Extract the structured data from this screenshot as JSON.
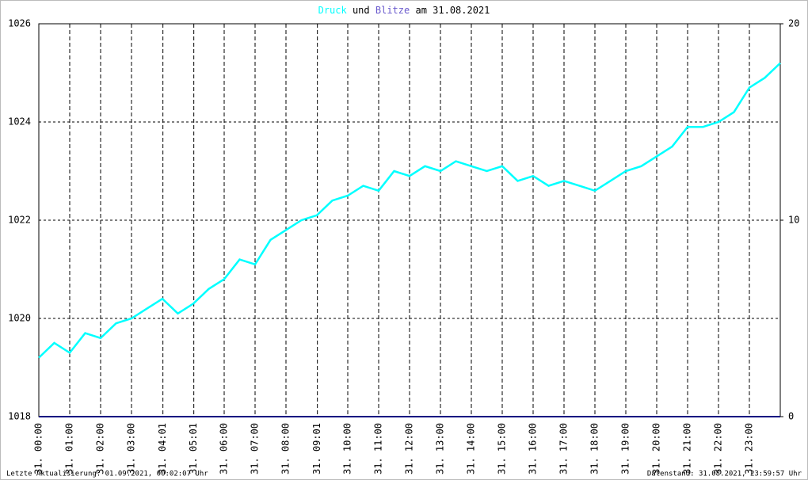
{
  "chart_data": {
    "type": "line",
    "title_connector": "und",
    "title_date": "am 31.08.2021",
    "footer_left": "Letzte Aktualisierung: 01.09.2021, 00:02:07 Uhr",
    "footer_right": "Datenstand: 31.08.2021, 23:59:57 Uhr",
    "xlim": [
      0,
      24
    ],
    "xticks": [
      {
        "value": 0,
        "label": "31. 00:00"
      },
      {
        "value": 1,
        "label": "31. 01:00"
      },
      {
        "value": 2,
        "label": "31. 02:00"
      },
      {
        "value": 3,
        "label": "31. 03:00"
      },
      {
        "value": 4.017,
        "label": "31. 04:01"
      },
      {
        "value": 5.017,
        "label": "31. 05:01"
      },
      {
        "value": 6,
        "label": "31. 06:00"
      },
      {
        "value": 7,
        "label": "31. 07:00"
      },
      {
        "value": 8,
        "label": "31. 08:00"
      },
      {
        "value": 9.017,
        "label": "31. 09:01"
      },
      {
        "value": 10,
        "label": "31. 10:00"
      },
      {
        "value": 11,
        "label": "31. 11:00"
      },
      {
        "value": 12,
        "label": "31. 12:00"
      },
      {
        "value": 13,
        "label": "31. 13:00"
      },
      {
        "value": 14,
        "label": "31. 14:00"
      },
      {
        "value": 15,
        "label": "31. 15:00"
      },
      {
        "value": 16,
        "label": "31. 16:00"
      },
      {
        "value": 17,
        "label": "31. 17:00"
      },
      {
        "value": 18,
        "label": "31. 18:00"
      },
      {
        "value": 19,
        "label": "31. 19:00"
      },
      {
        "value": 20,
        "label": "31. 20:00"
      },
      {
        "value": 21,
        "label": "31. 21:00"
      },
      {
        "value": 22,
        "label": "31. 22:00"
      },
      {
        "value": 23,
        "label": "31. 23:00"
      }
    ],
    "ylim": [
      1018,
      1026
    ],
    "yticks": [
      1018,
      1020,
      1022,
      1024,
      1026
    ],
    "y2lim": [
      0,
      20
    ],
    "y2ticks": [
      0,
      10,
      20
    ],
    "grid": true,
    "series": [
      {
        "name": "Druck",
        "color": "#00ffff",
        "x": [
          0,
          0.5,
          1,
          1.5,
          2,
          2.5,
          3,
          3.5,
          4,
          4.5,
          5,
          5.5,
          6,
          6.5,
          7,
          7.5,
          8,
          8.5,
          9,
          9.5,
          10,
          10.5,
          11,
          11.5,
          12,
          12.5,
          13,
          13.5,
          14,
          14.5,
          15,
          15.5,
          16,
          16.5,
          17,
          17.5,
          18,
          18.5,
          19,
          19.5,
          20,
          20.5,
          21,
          21.5,
          22,
          22.5,
          23,
          23.5,
          24
        ],
        "values": [
          1019.2,
          1019.5,
          1019.3,
          1019.7,
          1019.6,
          1019.9,
          1020.0,
          1020.2,
          1020.4,
          1020.1,
          1020.3,
          1020.6,
          1020.8,
          1021.2,
          1021.1,
          1021.6,
          1021.8,
          1022.0,
          1022.1,
          1022.4,
          1022.5,
          1022.7,
          1022.6,
          1023.0,
          1022.9,
          1023.1,
          1023.0,
          1023.2,
          1023.1,
          1023.0,
          1023.1,
          1022.8,
          1022.9,
          1022.7,
          1022.8,
          1022.7,
          1022.6,
          1022.8,
          1023.0,
          1023.1,
          1023.3,
          1023.5,
          1023.9,
          1023.9,
          1024.0,
          1024.2,
          1024.7,
          1024.9,
          1025.2
        ]
      },
      {
        "name": "Blitze",
        "color": "#000080",
        "axis": "y2",
        "x": [
          0,
          24
        ],
        "values": [
          0,
          0
        ]
      }
    ]
  }
}
